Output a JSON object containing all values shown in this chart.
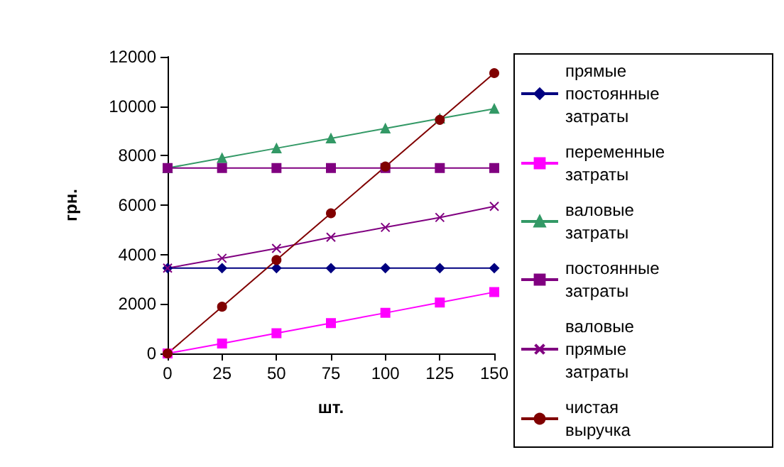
{
  "chart_data": {
    "type": "line",
    "xlabel": "шт.",
    "ylabel": "грн.",
    "x": [
      0,
      25,
      50,
      75,
      100,
      125,
      150
    ],
    "xlim": [
      0,
      150
    ],
    "xticks": [
      0,
      25,
      50,
      75,
      100,
      125,
      150
    ],
    "ylim": [
      0,
      12000
    ],
    "yticks": [
      0,
      2000,
      4000,
      6000,
      8000,
      10000,
      12000
    ],
    "grid": false,
    "legend": "right",
    "series": [
      {
        "name": "прямые постоянные затраты",
        "color": "#000080",
        "marker": "diamond",
        "values": [
          3450,
          3450,
          3450,
          3450,
          3450,
          3450,
          3450
        ]
      },
      {
        "name": "переменные затраты",
        "color": "#ff00ff",
        "marker": "square",
        "values": [
          0,
          400,
          820,
          1230,
          1640,
          2060,
          2480
        ]
      },
      {
        "name": "валовые затраты",
        "color": "#339966",
        "marker": "triangle",
        "values": [
          7500,
          7900,
          8300,
          8700,
          9100,
          9500,
          9900
        ]
      },
      {
        "name": "постоянные затраты",
        "color": "#800080",
        "marker": "square",
        "values": [
          7500,
          7500,
          7500,
          7500,
          7500,
          7500,
          7500
        ]
      },
      {
        "name": "валовые прямые затраты",
        "color": "#800080",
        "marker": "cross",
        "values": [
          3450,
          3850,
          4250,
          4700,
          5100,
          5500,
          5950
        ]
      },
      {
        "name": "чистая выручка",
        "color": "#800000",
        "marker": "circle",
        "values": [
          0,
          1890,
          3780,
          5670,
          7560,
          9450,
          11340
        ]
      }
    ]
  }
}
